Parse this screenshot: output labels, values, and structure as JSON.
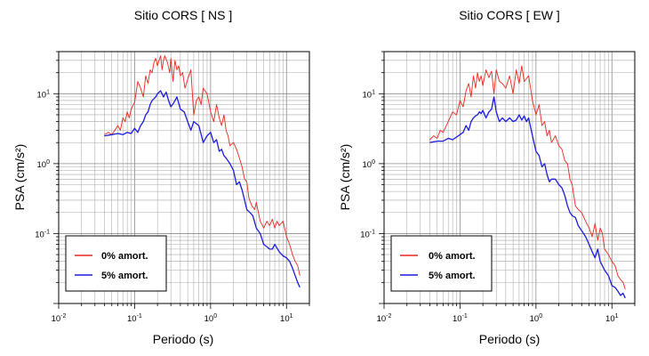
{
  "chart_data": [
    {
      "type": "line",
      "title": "Sitio CORS [ NS ]",
      "xlabel": "Periodo (s)",
      "ylabel": "PSA (cm/s²)",
      "xscale": "log",
      "yscale": "log",
      "xlim": [
        0.01,
        20
      ],
      "ylim": [
        0.01,
        40
      ],
      "xticks": [
        {
          "base": "10",
          "exp": "-2"
        },
        {
          "base": "10",
          "exp": "-1"
        },
        {
          "base": "10",
          "exp": "0"
        },
        {
          "base": "10",
          "exp": "1"
        }
      ],
      "yticks": [
        {
          "base": "10",
          "exp": "-1"
        },
        {
          "base": "10",
          "exp": "0"
        },
        {
          "base": "10",
          "exp": "1"
        }
      ],
      "grid": true,
      "legend": "bottom-left",
      "series": [
        {
          "name": "0% amort.",
          "color": "#e8281e",
          "x": [
            0.04,
            0.045,
            0.05,
            0.055,
            0.06,
            0.065,
            0.07,
            0.075,
            0.08,
            0.085,
            0.09,
            0.1,
            0.11,
            0.12,
            0.13,
            0.14,
            0.15,
            0.16,
            0.17,
            0.18,
            0.19,
            0.2,
            0.21,
            0.22,
            0.23,
            0.24,
            0.25,
            0.27,
            0.29,
            0.3,
            0.32,
            0.34,
            0.36,
            0.38,
            0.4,
            0.43,
            0.46,
            0.5,
            0.55,
            0.6,
            0.65,
            0.7,
            0.75,
            0.8,
            0.9,
            1.0,
            1.1,
            1.2,
            1.3,
            1.4,
            1.5,
            1.6,
            1.7,
            1.8,
            2.0,
            2.2,
            2.4,
            2.6,
            2.8,
            3.0,
            3.2,
            3.5,
            3.8,
            4.0,
            4.5,
            5.0,
            5.5,
            6.0,
            6.5,
            7.0,
            7.5,
            8.0,
            9.0,
            10.0,
            11.0,
            12.0,
            13.0,
            14.0,
            15.0
          ],
          "values": [
            2.6,
            2.8,
            2.6,
            3.0,
            3.5,
            3.0,
            4.5,
            4.0,
            5.5,
            4.5,
            6.0,
            7.5,
            15.0,
            12.0,
            9.0,
            18.0,
            14.0,
            22.0,
            20.0,
            28.0,
            32.0,
            25.0,
            30.0,
            35.0,
            22.0,
            30.0,
            35.0,
            28.0,
            20.0,
            32.0,
            15.0,
            30.0,
            22.0,
            25.0,
            18.0,
            20.0,
            12.0,
            16.0,
            22.0,
            5.0,
            8.0,
            9.0,
            7.0,
            12.0,
            10.0,
            5.5,
            4.0,
            7.0,
            4.5,
            3.5,
            5.0,
            3.0,
            2.5,
            1.8,
            2.0,
            1.6,
            1.2,
            0.9,
            0.6,
            0.55,
            0.32,
            0.25,
            0.22,
            0.28,
            0.15,
            0.12,
            0.15,
            0.13,
            0.16,
            0.12,
            0.15,
            0.13,
            0.15,
            0.09,
            0.07,
            0.05,
            0.04,
            0.035,
            0.025
          ]
        },
        {
          "name": "5% amort.",
          "color": "#1a1adc",
          "x": [
            0.04,
            0.05,
            0.06,
            0.07,
            0.08,
            0.09,
            0.1,
            0.11,
            0.12,
            0.13,
            0.14,
            0.15,
            0.16,
            0.17,
            0.18,
            0.19,
            0.2,
            0.22,
            0.24,
            0.26,
            0.28,
            0.3,
            0.33,
            0.36,
            0.4,
            0.45,
            0.5,
            0.55,
            0.6,
            0.7,
            0.8,
            0.9,
            1.0,
            1.1,
            1.2,
            1.3,
            1.4,
            1.5,
            1.6,
            1.8,
            2.0,
            2.2,
            2.4,
            2.6,
            2.8,
            3.0,
            3.3,
            3.6,
            4.0,
            4.5,
            5.0,
            5.5,
            6.0,
            6.5,
            7.0,
            8.0,
            9.0,
            10.0,
            11.0,
            12.0,
            13.0,
            14.0,
            15.0
          ],
          "values": [
            2.5,
            2.6,
            2.7,
            2.6,
            2.8,
            2.7,
            3.2,
            2.8,
            3.5,
            4.0,
            5.0,
            5.5,
            7.0,
            8.0,
            8.5,
            9.0,
            10.0,
            11.0,
            9.0,
            10.5,
            8.0,
            6.5,
            7.5,
            9.0,
            6.0,
            5.5,
            4.0,
            3.0,
            4.0,
            3.5,
            2.0,
            2.5,
            2.8,
            2.0,
            2.2,
            1.5,
            1.6,
            1.3,
            1.2,
            1.0,
            0.8,
            0.5,
            0.55,
            0.42,
            0.3,
            0.22,
            0.2,
            0.18,
            0.12,
            0.1,
            0.07,
            0.065,
            0.06,
            0.06,
            0.07,
            0.055,
            0.048,
            0.045,
            0.04,
            0.032,
            0.025,
            0.02,
            0.017
          ]
        }
      ]
    },
    {
      "type": "line",
      "title": "Sitio CORS [ EW ]",
      "xlabel": "Periodo (s)",
      "ylabel": "PSA (cm/s²)",
      "xscale": "log",
      "yscale": "log",
      "xlim": [
        0.01,
        20
      ],
      "ylim": [
        0.01,
        40
      ],
      "xticks": [
        {
          "base": "10",
          "exp": "-2"
        },
        {
          "base": "10",
          "exp": "-1"
        },
        {
          "base": "10",
          "exp": "0"
        },
        {
          "base": "10",
          "exp": "1"
        }
      ],
      "yticks": [
        {
          "base": "10",
          "exp": "-1"
        },
        {
          "base": "10",
          "exp": "0"
        },
        {
          "base": "10",
          "exp": "1"
        }
      ],
      "grid": true,
      "legend": "bottom-left",
      "series": [
        {
          "name": "0% amort.",
          "color": "#e8281e",
          "x": [
            0.04,
            0.045,
            0.05,
            0.055,
            0.06,
            0.07,
            0.08,
            0.09,
            0.1,
            0.11,
            0.12,
            0.13,
            0.14,
            0.15,
            0.16,
            0.17,
            0.18,
            0.19,
            0.2,
            0.22,
            0.24,
            0.26,
            0.28,
            0.3,
            0.33,
            0.36,
            0.4,
            0.45,
            0.5,
            0.55,
            0.6,
            0.65,
            0.7,
            0.8,
            0.9,
            1.0,
            1.1,
            1.2,
            1.3,
            1.4,
            1.5,
            1.6,
            1.8,
            2.0,
            2.2,
            2.4,
            2.6,
            2.8,
            3.0,
            3.3,
            3.6,
            4.0,
            4.5,
            5.0,
            5.5,
            6.0,
            6.5,
            7.0,
            7.5,
            8.0,
            9.0,
            10.0,
            11.0,
            12.0,
            13.0,
            14.0,
            15.0
          ],
          "values": [
            2.2,
            2.5,
            2.3,
            3.0,
            2.8,
            4.0,
            5.5,
            5.0,
            8.0,
            6.5,
            11.0,
            14.0,
            9.0,
            18.0,
            12.0,
            20.0,
            15.0,
            18.0,
            13.0,
            22.0,
            17.0,
            21.0,
            10.0,
            22.0,
            15.0,
            14.0,
            12.0,
            18.0,
            10.0,
            22.0,
            14.0,
            25.0,
            15.0,
            18.0,
            8.0,
            5.0,
            7.0,
            3.5,
            4.0,
            2.5,
            3.0,
            2.0,
            2.5,
            1.8,
            1.6,
            1.1,
            1.0,
            0.6,
            0.5,
            0.25,
            0.22,
            0.2,
            0.15,
            0.12,
            0.09,
            0.14,
            0.08,
            0.12,
            0.1,
            0.06,
            0.05,
            0.04,
            0.035,
            0.025,
            0.022,
            0.02,
            0.016
          ]
        },
        {
          "name": "5% amort.",
          "color": "#1a1adc",
          "x": [
            0.04,
            0.05,
            0.06,
            0.07,
            0.08,
            0.09,
            0.1,
            0.11,
            0.12,
            0.13,
            0.14,
            0.15,
            0.16,
            0.17,
            0.18,
            0.19,
            0.2,
            0.22,
            0.24,
            0.26,
            0.28,
            0.3,
            0.33,
            0.36,
            0.4,
            0.45,
            0.5,
            0.55,
            0.6,
            0.65,
            0.7,
            0.75,
            0.8,
            0.9,
            1.0,
            1.1,
            1.2,
            1.3,
            1.4,
            1.5,
            1.6,
            1.8,
            2.0,
            2.2,
            2.4,
            2.6,
            2.8,
            3.0,
            3.3,
            3.6,
            4.0,
            4.5,
            5.0,
            5.5,
            6.0,
            6.5,
            7.0,
            8.0,
            9.0,
            10.0,
            11.0,
            12.0,
            13.0,
            14.0,
            15.0
          ],
          "values": [
            2.0,
            2.1,
            2.1,
            2.3,
            2.2,
            2.4,
            2.6,
            2.8,
            3.5,
            3.0,
            4.0,
            4.5,
            4.8,
            5.0,
            5.5,
            5.2,
            5.8,
            4.5,
            5.5,
            6.0,
            9.0,
            5.5,
            4.0,
            4.5,
            4.0,
            4.5,
            4.0,
            4.2,
            5.0,
            4.2,
            4.8,
            4.0,
            4.5,
            2.5,
            1.5,
            1.3,
            0.9,
            1.0,
            0.7,
            0.55,
            0.6,
            0.6,
            0.5,
            0.45,
            0.35,
            0.25,
            0.2,
            0.18,
            0.17,
            0.13,
            0.11,
            0.09,
            0.07,
            0.055,
            0.045,
            0.06,
            0.04,
            0.03,
            0.025,
            0.018,
            0.017,
            0.015,
            0.013,
            0.014,
            0.012
          ]
        }
      ]
    }
  ]
}
